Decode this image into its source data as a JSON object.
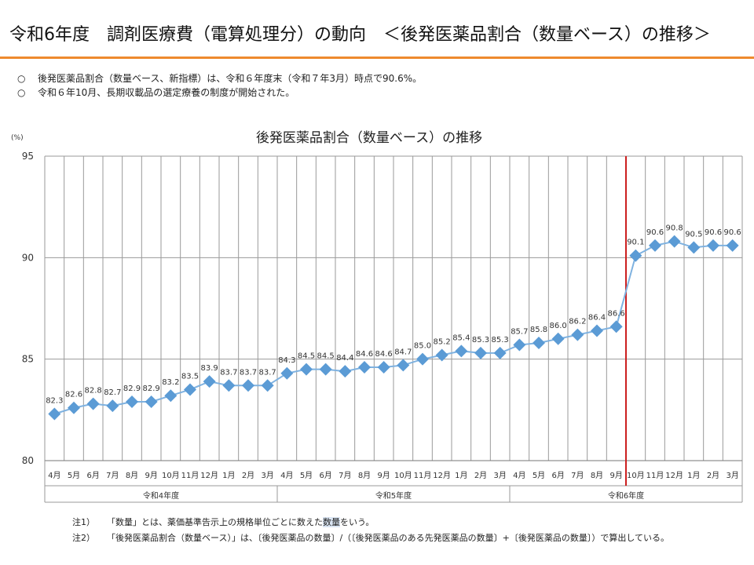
{
  "slide": {
    "title": "令和6年度　調剤医療費（電算処理分）の動向　＜後発医薬品割合（数量ベース）の推移＞",
    "accent_color": "#ee8a2e",
    "bullets": [
      {
        "mark": "○",
        "text": "後発医薬品割合（数量ベース、新指標）は、令和６年度末（令和７年3月）時点で90.6%。"
      },
      {
        "mark": "○",
        "text": "令和６年10月、長期収載品の選定療養の制度が開始された。"
      }
    ],
    "notes": [
      {
        "label": "注1）",
        "pre": "「数量」とは、薬価基準告示上の規格単位ごとに数えた",
        "highlight": "数量",
        "post": "をいう。"
      },
      {
        "label": "注2）",
        "pre": "「後発医薬品割合（数量ベース）」は、〔後発医薬品の数量〕/（〔後発医薬品のある先発医薬品の数量〕+〔後発医薬品の数量〕）で算出している。",
        "highlight": "",
        "post": ""
      }
    ]
  },
  "chart_data": {
    "type": "line",
    "title": "後発医薬品割合（数量ベース）の推移",
    "ylabel": "(%)",
    "xlabel": "",
    "ylim": [
      80,
      95
    ],
    "yticks": [
      80,
      85,
      90,
      95
    ],
    "grid": true,
    "categories": [
      "4月",
      "5月",
      "6月",
      "7月",
      "8月",
      "9月",
      "10月",
      "11月",
      "12月",
      "1月",
      "2月",
      "3月",
      "4月",
      "5月",
      "6月",
      "7月",
      "8月",
      "9月",
      "10月",
      "11月",
      "12月",
      "1月",
      "2月",
      "3月",
      "4月",
      "5月",
      "6月",
      "7月",
      "8月",
      "9月",
      "10月",
      "11月",
      "12月",
      "1月",
      "2月",
      "3月"
    ],
    "groups": [
      {
        "label": "令和4年度",
        "start": 0,
        "end": 11
      },
      {
        "label": "令和5年度",
        "start": 12,
        "end": 23
      },
      {
        "label": "令和6年度",
        "start": 24,
        "end": 35
      }
    ],
    "series": [
      {
        "values": [
          82.3,
          82.6,
          82.8,
          82.7,
          82.9,
          82.9,
          83.2,
          83.5,
          83.9,
          83.7,
          83.7,
          83.7,
          84.3,
          84.5,
          84.5,
          84.4,
          84.6,
          84.6,
          84.7,
          85.0,
          85.2,
          85.4,
          85.3,
          85.3,
          85.7,
          85.8,
          86.0,
          86.2,
          86.4,
          86.6,
          90.1,
          90.6,
          90.8,
          90.5,
          90.6,
          90.6
        ],
        "labels": [
          "82.3",
          "82.6",
          "82.8",
          "82.7",
          "82.9",
          "82.9",
          "83.2",
          "83.5",
          "83.9",
          "83.7",
          "83.7",
          "83.7",
          "84.3",
          "84.5",
          "84.5",
          "84.4",
          "84.6",
          "84.6",
          "84.7",
          "85.0",
          "85.2",
          "85.4",
          "85.3",
          "85.3",
          "85.7",
          "85.8",
          "86.0",
          "86.2",
          "86.4",
          "86.6",
          "90.1",
          "90.6",
          "90.8",
          "90.5",
          "90.6",
          "90.6"
        ],
        "line_color": "#7fb2e0",
        "marker_color": "#5b9bd5",
        "marker": "diamond"
      }
    ],
    "reference_line": {
      "after_index": 29,
      "color": "#cc1f1f"
    },
    "colors": {
      "grid": "#9a9a9a",
      "text": "#333333"
    }
  }
}
